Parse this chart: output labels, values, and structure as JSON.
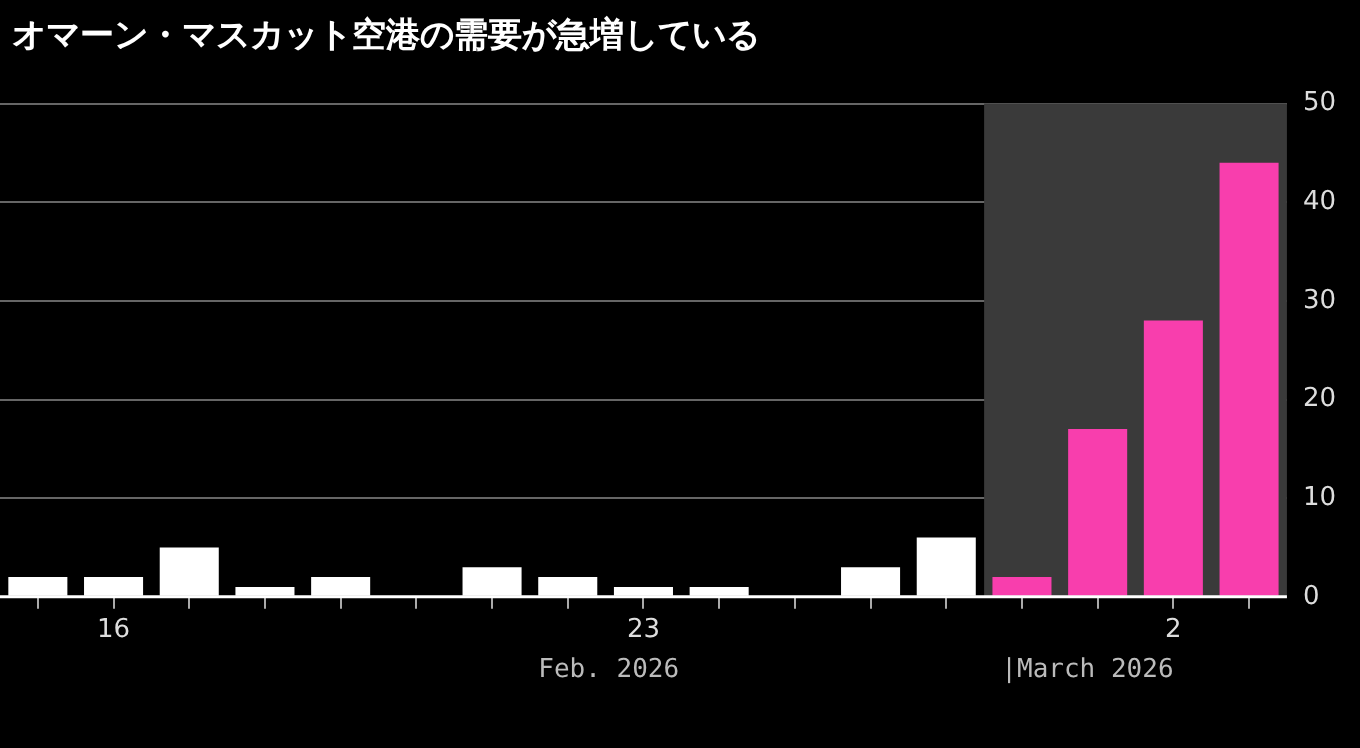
{
  "chart_data": {
    "type": "bar",
    "title": "オマーン・マスカット空港の需要が急増している",
    "x": [
      "2026-02-15",
      "2026-02-16",
      "2026-02-17",
      "2026-02-18",
      "2026-02-19",
      "2026-02-20",
      "2026-02-21",
      "2026-02-22",
      "2026-02-23",
      "2026-02-24",
      "2026-02-25",
      "2026-02-26",
      "2026-02-27",
      "2026-02-28",
      "2026-03-01",
      "2026-03-02",
      "2026-03-03"
    ],
    "values": [
      2,
      2,
      5,
      1,
      2,
      0,
      3,
      2,
      1,
      1,
      0,
      3,
      6,
      2,
      17,
      28,
      44
    ],
    "colors": [
      "#ffffff",
      "#ffffff",
      "#ffffff",
      "#ffffff",
      "#ffffff",
      "#ffffff",
      "#ffffff",
      "#ffffff",
      "#ffffff",
      "#ffffff",
      "#ffffff",
      "#ffffff",
      "#ffffff",
      "#f83ead",
      "#f83ead",
      "#f83ead",
      "#f83ead"
    ],
    "xlim": [
      "2026-02-14T12:00",
      "2026-03-03T12:00"
    ],
    "xticks": [
      {
        "value": "2026-02-15",
        "label": null
      },
      {
        "value": "2026-02-16",
        "label": "16"
      },
      {
        "value": "2026-02-17",
        "label": null
      },
      {
        "value": "2026-02-18",
        "label": null
      },
      {
        "value": "2026-02-19",
        "label": null
      },
      {
        "value": "2026-02-20",
        "label": null
      },
      {
        "value": "2026-02-21",
        "label": null
      },
      {
        "value": "2026-02-22",
        "label": null
      },
      {
        "value": "2026-02-23",
        "label": "23"
      },
      {
        "value": "2026-02-24",
        "label": null
      },
      {
        "value": "2026-02-25",
        "label": null
      },
      {
        "value": "2026-02-26",
        "label": null
      },
      {
        "value": "2026-02-27",
        "label": null
      },
      {
        "value": "2026-02-28",
        "label": null
      },
      {
        "value": "2026-03-01",
        "label": null
      },
      {
        "value": "2026-03-02",
        "label": "2"
      },
      {
        "value": "2026-03-03",
        "label": null
      }
    ],
    "ylim": [
      0,
      50
    ],
    "yticks": [
      0,
      10,
      20,
      30,
      40,
      50
    ],
    "bands": [
      {
        "axis": "x",
        "from": "2026-02-27T12:00",
        "to": "2026-03-03T12:00",
        "color": "#3a3a3a"
      }
    ],
    "annotations": [
      "Feb. 2026",
      "|March 2026"
    ],
    "grid": "y",
    "legend": false
  }
}
